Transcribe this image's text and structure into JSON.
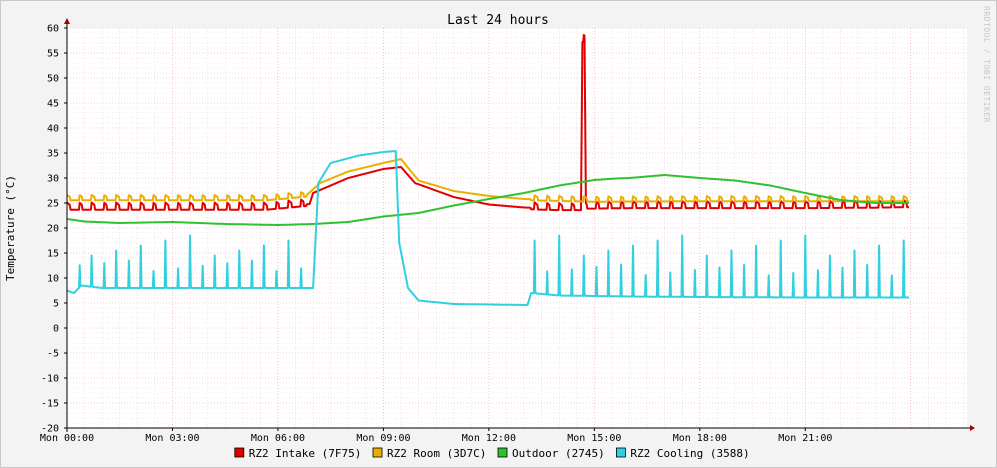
{
  "chart_data": {
    "type": "line",
    "title": "Last 24 hours",
    "ylabel": "Temperature (°C)",
    "watermark": "RRDTOOL / TOBI OETIKER",
    "ylim": [
      -20,
      60
    ],
    "yticks": [
      60,
      55,
      50,
      45,
      40,
      35,
      30,
      25,
      20,
      15,
      10,
      5,
      0,
      -5,
      -10,
      -15,
      -20
    ],
    "xlim_hours": [
      0,
      25.6
    ],
    "xticks": [
      {
        "hour": 0,
        "label": "Mon 00:00"
      },
      {
        "hour": 3,
        "label": "Mon 03:00"
      },
      {
        "hour": 6,
        "label": "Mon 06:00"
      },
      {
        "hour": 9,
        "label": "Mon 09:00"
      },
      {
        "hour": 12,
        "label": "Mon 12:00"
      },
      {
        "hour": 15,
        "label": "Mon 15:00"
      },
      {
        "hour": 18,
        "label": "Mon 18:00"
      },
      {
        "hour": 21,
        "label": "Mon 21:00"
      }
    ],
    "grid": true,
    "legend_position": "bottom",
    "series": [
      {
        "name": "RZ2 Intake (7F75)",
        "color": "#e00000",
        "pattern": "cycling",
        "points": [
          [
            0,
            24
          ],
          [
            5.7,
            24
          ],
          [
            6.9,
            24.8
          ],
          [
            7.0,
            27
          ],
          [
            8.0,
            30
          ],
          [
            9.0,
            31.8
          ],
          [
            9.5,
            32.2
          ],
          [
            9.9,
            29
          ],
          [
            11,
            26.2
          ],
          [
            12,
            24.7
          ],
          [
            13,
            24.1
          ],
          [
            14,
            23.9
          ],
          [
            14.62,
            23.9
          ],
          [
            14.66,
            57.5
          ],
          [
            14.72,
            57.5
          ],
          [
            14.76,
            24.2
          ],
          [
            16,
            24.3
          ],
          [
            18,
            24.3
          ],
          [
            21,
            24.3
          ],
          [
            23,
            24.4
          ],
          [
            23.95,
            24.5
          ]
        ],
        "cycle": {
          "amplitude": 1.1,
          "period_h": 0.35,
          "ranges": [
            [
              0,
              6.8
            ],
            [
              13.2,
              23.95
            ]
          ]
        }
      },
      {
        "name": "RZ2 Room (3D7C)",
        "color": "#e8b000",
        "pattern": "cycling",
        "points": [
          [
            0,
            25.8
          ],
          [
            5.7,
            25.8
          ],
          [
            6.8,
            26.5
          ],
          [
            7.2,
            29
          ],
          [
            8,
            31.3
          ],
          [
            9,
            33
          ],
          [
            9.5,
            33.8
          ],
          [
            10,
            29.5
          ],
          [
            11,
            27.4
          ],
          [
            12,
            26.4
          ],
          [
            13,
            25.8
          ],
          [
            15,
            25.5
          ],
          [
            18,
            25.6
          ],
          [
            21,
            25.6
          ],
          [
            23.95,
            25.6
          ]
        ],
        "cycle": {
          "amplitude": 0.8,
          "period_h": 0.35,
          "ranges": [
            [
              0,
              6.8
            ],
            [
              13.2,
              23.95
            ]
          ]
        }
      },
      {
        "name": "Outdoor (2745)",
        "color": "#30c030",
        "pattern": "smooth",
        "points": [
          [
            0,
            21.8
          ],
          [
            0.5,
            21.3
          ],
          [
            1.5,
            21
          ],
          [
            3,
            21.2
          ],
          [
            4.5,
            20.8
          ],
          [
            6,
            20.6
          ],
          [
            7,
            20.8
          ],
          [
            8,
            21.2
          ],
          [
            9,
            22.3
          ],
          [
            10,
            23
          ],
          [
            11,
            24.5
          ],
          [
            12,
            25.8
          ],
          [
            13,
            27
          ],
          [
            14,
            28.5
          ],
          [
            15,
            29.6
          ],
          [
            15.6,
            29.9
          ],
          [
            16,
            30
          ],
          [
            17,
            30.6
          ],
          [
            18,
            30
          ],
          [
            19,
            29.5
          ],
          [
            20,
            28.5
          ],
          [
            21,
            27
          ],
          [
            22,
            25.6
          ],
          [
            23,
            25
          ],
          [
            23.95,
            25
          ]
        ]
      },
      {
        "name": "RZ2 Cooling (3588)",
        "color": "#30d0e0",
        "pattern": "spiky",
        "points": [
          [
            0,
            7.5
          ],
          [
            0.2,
            7
          ],
          [
            0.4,
            8.5
          ],
          [
            1,
            8
          ],
          [
            3,
            8
          ],
          [
            6,
            8
          ],
          [
            7,
            8
          ],
          [
            7.15,
            29
          ],
          [
            7.5,
            33
          ],
          [
            8.3,
            34.5
          ],
          [
            9,
            35.2
          ],
          [
            9.35,
            35.4
          ],
          [
            9.45,
            17
          ],
          [
            9.7,
            8
          ],
          [
            10,
            5.5
          ],
          [
            11,
            4.8
          ],
          [
            12,
            4.7
          ],
          [
            13,
            4.6
          ],
          [
            13.1,
            4.6
          ],
          [
            13.2,
            7
          ],
          [
            14,
            6.5
          ],
          [
            16,
            6.3
          ],
          [
            18,
            6.2
          ],
          [
            21,
            6.1
          ],
          [
            23.95,
            6.1
          ]
        ],
        "spikes": {
          "base_offset": 0,
          "peak": 18.5,
          "period_h": 0.35,
          "ranges": [
            [
              0.2,
              6.9
            ],
            [
              13.2,
              23.95
            ]
          ]
        }
      }
    ]
  },
  "legend": [
    {
      "label": "RZ2 Intake (7F75)",
      "color": "#e00000"
    },
    {
      "label": "RZ2 Room (3D7C)",
      "color": "#e8b000"
    },
    {
      "label": "Outdoor (2745)",
      "color": "#30c030"
    },
    {
      "label": "RZ2 Cooling (3588)",
      "color": "#30d0e0"
    }
  ]
}
